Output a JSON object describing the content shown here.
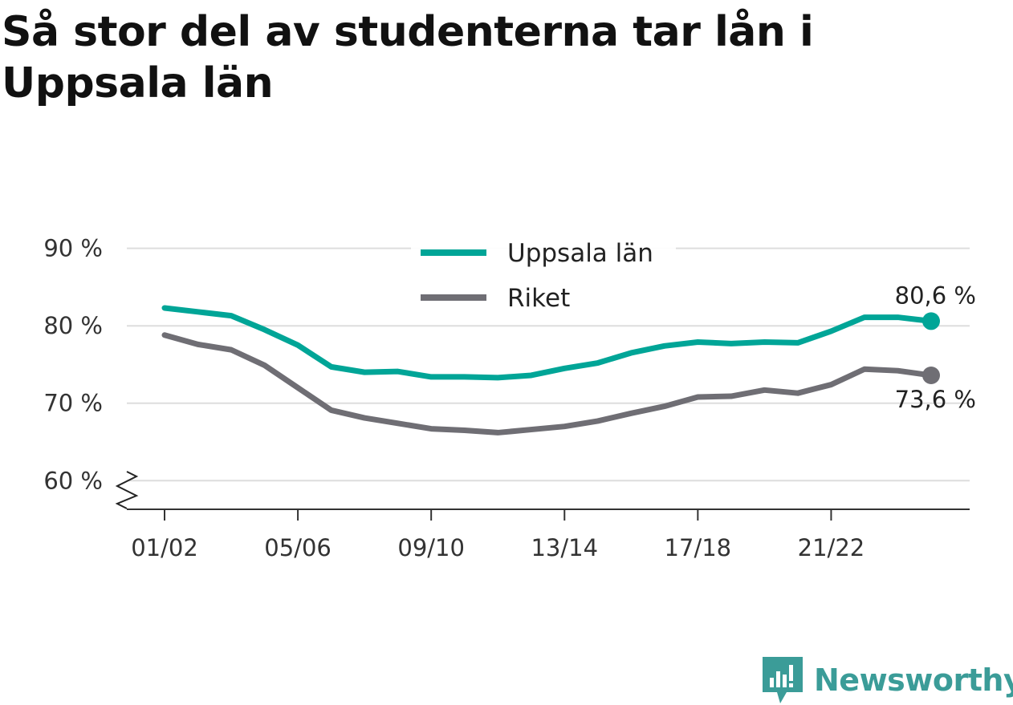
{
  "title": "Så stor del av studenterna tar lån i Uppsala län",
  "brand": {
    "name": "Newsworthy",
    "icon": "newsworthy-logo-icon",
    "color": "#3b9c98"
  },
  "colors": {
    "uppsala": "#00a597",
    "riket": "#6f6e74",
    "grid": "#dddddd",
    "axis": "#333333"
  },
  "chart_data": {
    "type": "line",
    "x": [
      "01/02",
      "02/03",
      "03/04",
      "04/05",
      "05/06",
      "06/07",
      "07/08",
      "08/09",
      "09/10",
      "10/11",
      "11/12",
      "12/13",
      "13/14",
      "14/15",
      "15/16",
      "16/17",
      "17/18",
      "18/19",
      "19/20",
      "20/21",
      "21/22",
      "22/23",
      "23/24",
      "24/25"
    ],
    "x_tick_labels": [
      "01/02",
      "05/06",
      "09/10",
      "13/14",
      "17/18",
      "21/22"
    ],
    "y_tick_labels": [
      "90 %",
      "80 %",
      "70 %",
      "60 %"
    ],
    "y_ticks": [
      90,
      80,
      70,
      60
    ],
    "ylim": [
      56.3,
      91
    ],
    "y_axis_break": true,
    "grid": true,
    "legend_position": "top-center",
    "series": [
      {
        "name": "Uppsala län",
        "color": "#00a597",
        "values": [
          82.3,
          81.8,
          81.3,
          79.5,
          77.5,
          74.7,
          74.0,
          74.1,
          73.4,
          73.4,
          73.3,
          73.6,
          74.5,
          75.2,
          76.5,
          77.4,
          77.9,
          77.7,
          77.9,
          77.8,
          79.3,
          81.1,
          81.1,
          80.6
        ],
        "end_label": "80,6 %"
      },
      {
        "name": "Riket",
        "color": "#6f6e74",
        "values": [
          78.8,
          77.6,
          76.9,
          74.9,
          72.0,
          69.1,
          68.1,
          67.4,
          66.7,
          66.5,
          66.2,
          66.6,
          67.0,
          67.7,
          68.7,
          69.6,
          70.8,
          70.9,
          71.7,
          71.3,
          72.4,
          74.4,
          74.2,
          73.6
        ],
        "end_label": "73,6 %"
      }
    ]
  }
}
